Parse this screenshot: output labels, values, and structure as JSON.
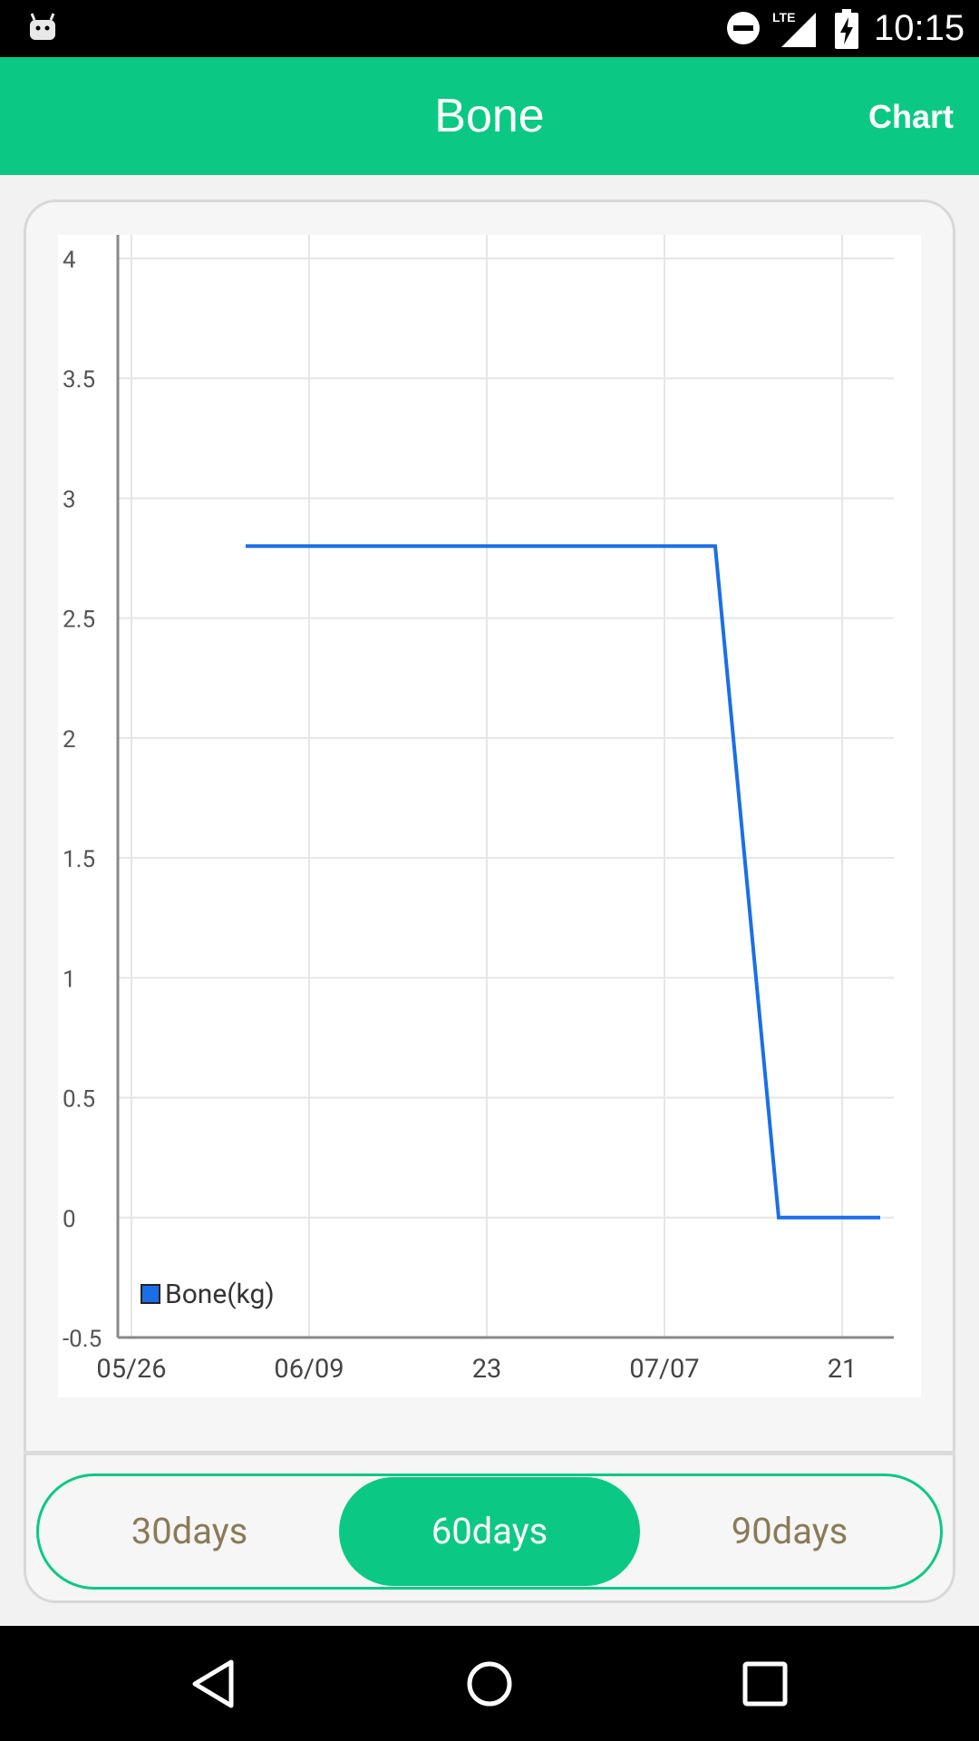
{
  "status_bar": {
    "time": "10:15",
    "icons": [
      "android-icon",
      "do-not-disturb-icon",
      "lte-signal-icon",
      "battery-charging-icon"
    ]
  },
  "app_bar": {
    "title": "Bone",
    "action_label": "Chart"
  },
  "chart_data": {
    "type": "line",
    "title": "",
    "xlabel": "",
    "ylabel": "",
    "x_ticks": [
      "05/26",
      "06/09",
      "23",
      "07/07",
      "21"
    ],
    "y_ticks": [
      "4",
      "3.5",
      "3",
      "2.5",
      "2",
      "1.5",
      "1",
      "0.5",
      "0",
      "-0.5"
    ],
    "ylim": [
      -0.5,
      4
    ],
    "xlim": [
      "2015-05-26",
      "2015-07-27"
    ],
    "grid": true,
    "legend": {
      "position": "bottom-left",
      "entries": [
        "Bone(kg)"
      ]
    },
    "series": [
      {
        "name": "Bone(kg)",
        "color": "#1a6fe6",
        "points": [
          {
            "x": "2015-06-04",
            "y": 2.8
          },
          {
            "x": "2015-07-11",
            "y": 2.8
          },
          {
            "x": "2015-07-16",
            "y": 0
          },
          {
            "x": "2015-07-24",
            "y": 0
          }
        ]
      }
    ]
  },
  "range_selector": {
    "options": [
      "30days",
      "60days",
      "90days"
    ],
    "selected": "60days",
    "accent_color": "#0bc984"
  },
  "nav_bar": {
    "icons": [
      "back-icon",
      "home-icon",
      "recents-icon"
    ]
  }
}
